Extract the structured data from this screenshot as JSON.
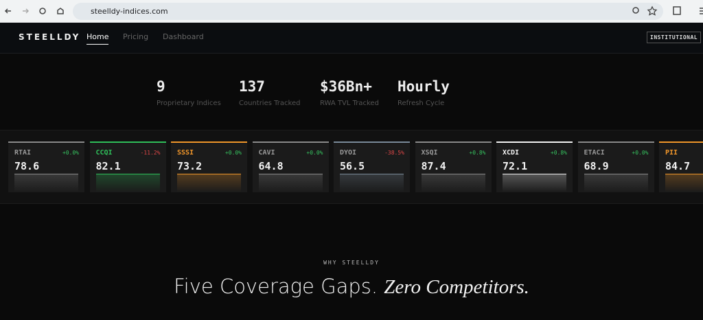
{
  "browser": {
    "url": "steelldy-indices.com"
  },
  "nav": {
    "brand": "STEELLDY",
    "links": [
      "Home",
      "Pricing",
      "Dashboard"
    ],
    "button": "INSTITUTIONAL"
  },
  "stats": [
    {
      "value": "9",
      "label": "Proprietary Indices"
    },
    {
      "value": "137",
      "label": "Countries Tracked"
    },
    {
      "value": "$36Bn+",
      "label": "RWA TVL Tracked"
    },
    {
      "value": "Hourly",
      "label": "Refresh Cycle"
    }
  ],
  "indices": [
    {
      "name": "RTAI",
      "change": "+0.0%",
      "value": "78.6",
      "color": "#8a8a8a"
    },
    {
      "name": "CCQI",
      "change": "-11.2%",
      "value": "82.1",
      "color": "#2fbf5a"
    },
    {
      "name": "SSSI",
      "change": "+0.0%",
      "value": "73.2",
      "color": "#f0962a"
    },
    {
      "name": "CAVI",
      "change": "+0.0%",
      "value": "64.8",
      "color": "#8a8a8a"
    },
    {
      "name": "DYOI",
      "change": "-38.5%",
      "value": "56.5",
      "color": "#7a8a99"
    },
    {
      "name": "XSQI",
      "change": "+0.8%",
      "value": "87.4",
      "color": "#8a8a8a"
    },
    {
      "name": "XCDI",
      "change": "+0.8%",
      "value": "72.1",
      "color": "#f2f2f2"
    },
    {
      "name": "ETACI",
      "change": "+0.0%",
      "value": "68.9",
      "color": "#8a8a8a"
    },
    {
      "name": "PII",
      "value": "84.7",
      "color": "#f0962a"
    }
  ],
  "section": {
    "eyebrow": "WHY STEELLDY",
    "heading": "Five Coverage Gaps.",
    "heading_italic": "Zero Competitors."
  }
}
